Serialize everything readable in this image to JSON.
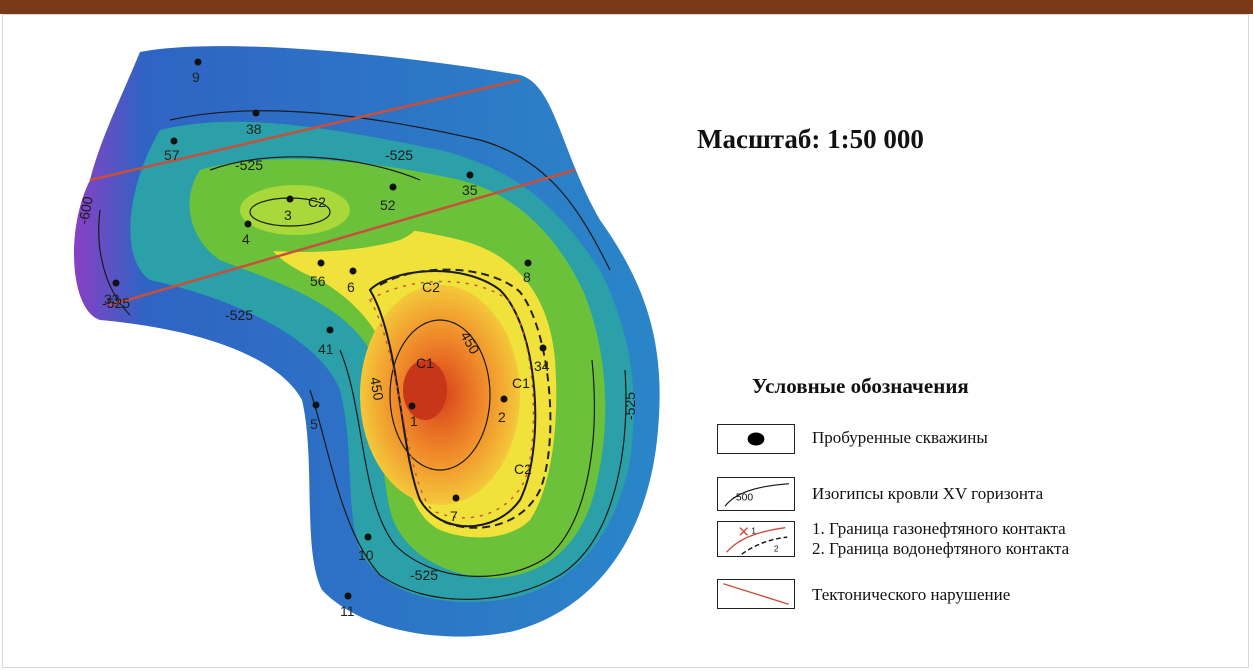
{
  "map": {
    "scale_label": "Масштаб: 1:50 000",
    "contour_labels": [
      "-525",
      "-525",
      "-600",
      "-525",
      "450",
      "450",
      "-525",
      "-525",
      "-525"
    ],
    "zone_labels": [
      "C2",
      "C2",
      "C1",
      "C1",
      "C2"
    ],
    "wells": [
      "9",
      "38",
      "57",
      "35",
      "52",
      "3",
      "4",
      "56",
      "6",
      "8",
      "34",
      "41",
      "1",
      "2",
      "7",
      "5",
      "10",
      "11",
      "33"
    ],
    "colors": {
      "outer": "#2a6fc0",
      "green": "#6bc23a",
      "yellow": "#f0e23a",
      "core": "#e2501c",
      "fault": "#c8503a"
    }
  },
  "legend": {
    "title": "Условные обозначения",
    "items": [
      {
        "icon": "well-dot-icon",
        "label": "Пробуренные скважины"
      },
      {
        "icon": "contour-line-icon",
        "label": "Изогипсы кровли XV горизонта",
        "sample": "-500"
      },
      {
        "icon": "contact-boundary-icon",
        "label_1": "1. Граница газонефтяного контакта",
        "label_2": "2. Граница водонефтяного контакта",
        "sample_1": "1",
        "sample_2": "2"
      },
      {
        "icon": "fault-line-icon",
        "label": "Тектонического нарушение"
      }
    ]
  }
}
